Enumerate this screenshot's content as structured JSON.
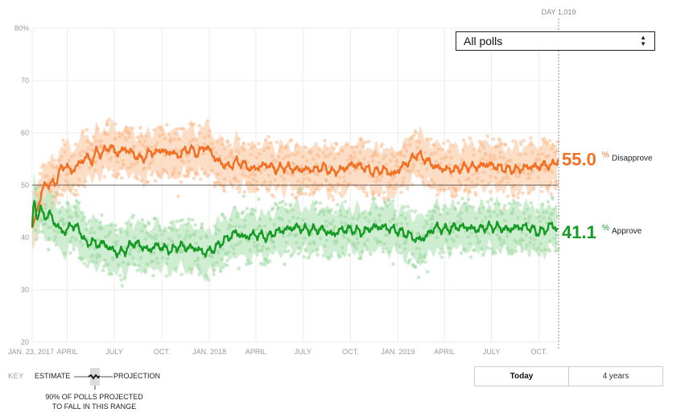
{
  "chart_data": {
    "type": "line",
    "title": "",
    "ylabel": "",
    "xlabel": "",
    "ylim": [
      20,
      80
    ],
    "yticks": [
      {
        "value": 80,
        "label": "80%"
      },
      {
        "value": 70,
        "label": "70"
      },
      {
        "value": 60,
        "label": "60"
      },
      {
        "value": 50,
        "label": "50"
      },
      {
        "value": 40,
        "label": "40"
      },
      {
        "value": 30,
        "label": "30"
      },
      {
        "value": 20,
        "label": "20"
      }
    ],
    "xlim_days": [
      0,
      1019
    ],
    "xticks": [
      {
        "day": 0,
        "label": "JAN. 23, 2017"
      },
      {
        "day": 68,
        "label": "APRIL"
      },
      {
        "day": 159,
        "label": "JULY"
      },
      {
        "day": 251,
        "label": "OCT."
      },
      {
        "day": 343,
        "label": "JAN. 2018"
      },
      {
        "day": 433,
        "label": "APRIL"
      },
      {
        "day": 524,
        "label": "JULY"
      },
      {
        "day": 616,
        "label": "OCT."
      },
      {
        "day": 708,
        "label": "JAN. 2019"
      },
      {
        "day": 798,
        "label": "APRIL"
      },
      {
        "day": 889,
        "label": "JULY"
      },
      {
        "day": 981,
        "label": "OCT."
      }
    ],
    "marker_label": "DAY 1,019",
    "marker_day": 1019,
    "reference_line": 50,
    "series": [
      {
        "name": "Disapprove",
        "color": "#f36f21",
        "band_color": "#fbd2b3",
        "dot_color": "#f9b98a",
        "final_value": "55.0",
        "days": [
          0,
          5,
          10,
          15,
          20,
          28,
          35,
          45,
          55,
          65,
          75,
          85,
          95,
          105,
          115,
          125,
          135,
          150,
          165,
          180,
          195,
          210,
          220,
          230,
          240,
          250,
          260,
          270,
          280,
          295,
          305,
          320,
          335,
          345,
          355,
          370,
          380,
          395,
          410,
          425,
          440,
          455,
          470,
          490,
          510,
          530,
          550,
          565,
          580,
          600,
          620,
          640,
          660,
          680,
          700,
          715,
          730,
          745,
          760,
          780,
          800,
          820,
          840,
          860,
          880,
          900,
          920,
          940,
          960,
          980,
          995,
          1005,
          1012,
          1019
        ],
        "values": [
          41.8,
          43.5,
          45.5,
          47.5,
          49.0,
          50.5,
          50.0,
          50.5,
          53.0,
          54.0,
          52.5,
          53.5,
          54.5,
          55.5,
          54.5,
          56.5,
          56.0,
          57.5,
          56.0,
          57.0,
          56.0,
          55.0,
          55.5,
          56.5,
          56.0,
          57.0,
          56.0,
          56.5,
          55.5,
          56.5,
          57.0,
          56.0,
          57.5,
          56.5,
          55.0,
          54.0,
          53.5,
          54.5,
          54.0,
          53.0,
          53.5,
          54.0,
          53.0,
          53.5,
          53.0,
          53.0,
          53.0,
          53.5,
          52.5,
          53.0,
          54.0,
          53.5,
          52.5,
          53.0,
          52.0,
          53.5,
          54.5,
          56.0,
          55.0,
          53.5,
          53.0,
          53.0,
          53.5,
          53.5,
          54.0,
          53.5,
          53.0,
          53.0,
          53.5,
          53.5,
          54.0,
          53.5,
          54.5,
          55.0
        ]
      },
      {
        "name": "Approve",
        "color": "#159b23",
        "band_color": "#bfe8c1",
        "dot_color": "#9ed9a3",
        "final_value": "41.1",
        "days": [
          0,
          3,
          6,
          10,
          15,
          20,
          28,
          35,
          45,
          55,
          65,
          75,
          85,
          95,
          105,
          115,
          125,
          135,
          150,
          165,
          180,
          195,
          210,
          225,
          240,
          255,
          270,
          285,
          300,
          315,
          325,
          335,
          345,
          355,
          365,
          380,
          395,
          410,
          425,
          440,
          455,
          470,
          490,
          510,
          530,
          550,
          565,
          580,
          600,
          620,
          640,
          660,
          680,
          700,
          715,
          730,
          745,
          760,
          780,
          800,
          820,
          840,
          860,
          880,
          900,
          920,
          940,
          960,
          980,
          995,
          1005,
          1012,
          1019
        ],
        "values": [
          42.0,
          47.5,
          46.0,
          44.0,
          45.5,
          44.5,
          44.0,
          44.5,
          42.5,
          41.5,
          41.0,
          42.5,
          42.0,
          41.0,
          38.5,
          39.5,
          38.5,
          39.0,
          38.0,
          37.0,
          37.5,
          39.0,
          38.5,
          37.5,
          38.5,
          38.0,
          37.5,
          38.5,
          38.0,
          38.0,
          37.5,
          37.0,
          37.5,
          38.0,
          39.0,
          40.0,
          41.0,
          40.0,
          40.5,
          40.5,
          40.0,
          41.0,
          41.5,
          42.0,
          41.5,
          41.5,
          41.5,
          40.5,
          41.5,
          41.5,
          41.0,
          42.0,
          42.0,
          41.5,
          41.0,
          40.5,
          39.5,
          40.0,
          42.0,
          41.5,
          42.0,
          42.0,
          41.5,
          42.0,
          42.0,
          41.5,
          42.0,
          42.0,
          41.0,
          41.5,
          42.5,
          42.0,
          41.1
        ]
      }
    ]
  },
  "selector": {
    "label": "All polls"
  },
  "key": {
    "label": "KEY",
    "estimate": "ESTIMATE",
    "projection": "PROJECTION",
    "range_text": "90% OF POLLS PROJECTED TO FALL IN THIS RANGE"
  },
  "timeframe": {
    "options": [
      "Today",
      "4 years"
    ]
  }
}
